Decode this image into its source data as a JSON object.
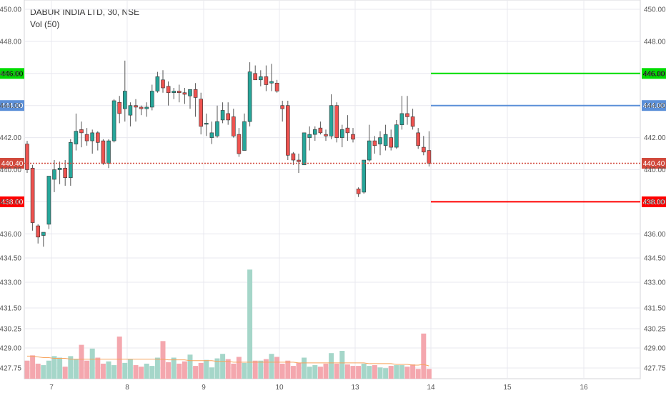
{
  "header": {
    "symbol": "DABUR INDIA LTD, 30, NSE",
    "indicator": "Vol (50)"
  },
  "colors": {
    "up": "#26a69a",
    "down": "#ef5350",
    "volume_up": "#a5d6c9",
    "volume_down": "#f4a7ae",
    "volume_ma": "#f7a35c",
    "grid": "#e8e8ef",
    "level_green": "#00dd00",
    "level_blue": "#5b8fd8",
    "level_red": "#ff0000",
    "last_price": "#d1483b"
  },
  "chart_data": {
    "type": "candlestick",
    "x_ticks": [
      "7",
      "8",
      "9",
      "10",
      "13",
      "14",
      "15",
      "16"
    ],
    "y_ticks_price": [
      "450.00",
      "448.00",
      "446.00",
      "444.00",
      "442.00",
      "440.00",
      "438.00",
      "436.00",
      "434.50"
    ],
    "y_ticks_volume": [
      "433.00",
      "431.50",
      "430.25",
      "429.00",
      "427.75"
    ],
    "price_range": [
      434.0,
      450.2
    ],
    "grid": true,
    "last_price": {
      "label": "440.40",
      "value": 440.4
    },
    "levels": [
      {
        "label": "446.00",
        "value": 446.0,
        "color": "level_green"
      },
      {
        "label": "444.00",
        "value": 444.0,
        "color": "level_blue"
      },
      {
        "label": "438.00",
        "value": 438.0,
        "color": "level_red"
      }
    ],
    "candles": [
      [
        441.6,
        441.8,
        439.8,
        440.0,
        2.4
      ],
      [
        440.1,
        440.3,
        436.2,
        436.7,
        3.1
      ],
      [
        436.5,
        436.6,
        435.4,
        435.8,
        2.0
      ],
      [
        435.9,
        436.1,
        435.2,
        436.1,
        1.8
      ],
      [
        436.6,
        439.6,
        436.3,
        439.6,
        2.4
      ],
      [
        439.4,
        440.6,
        438.6,
        440.0,
        3.0
      ],
      [
        440.0,
        440.5,
        439.1,
        440.1,
        2.8
      ],
      [
        440.1,
        440.6,
        439.0,
        439.5,
        1.6
      ],
      [
        439.5,
        441.9,
        439.0,
        441.7,
        3.0
      ],
      [
        441.6,
        443.5,
        441.2,
        442.4,
        2.6
      ],
      [
        442.5,
        443.0,
        441.4,
        442.3,
        4.5
      ],
      [
        442.2,
        442.6,
        441.5,
        441.8,
        2.4
      ],
      [
        441.8,
        442.5,
        441.0,
        442.3,
        4.0
      ],
      [
        442.3,
        442.4,
        441.2,
        441.7,
        2.8
      ],
      [
        441.8,
        441.9,
        440.3,
        440.4,
        2.0
      ],
      [
        440.4,
        441.9,
        440.1,
        441.8,
        2.3
      ],
      [
        441.8,
        444.4,
        441.7,
        444.3,
        1.8
      ],
      [
        444.2,
        444.6,
        442.9,
        443.5,
        5.6
      ],
      [
        443.8,
        446.8,
        443.0,
        444.9,
        2.1
      ],
      [
        443.4,
        444.2,
        442.7,
        444.0,
        2.6
      ],
      [
        444.0,
        444.4,
        443.0,
        443.9,
        1.8
      ],
      [
        443.9,
        444.0,
        443.4,
        443.8,
        1.6
      ],
      [
        443.8,
        444.2,
        443.3,
        443.9,
        2.0
      ],
      [
        443.9,
        445.3,
        443.7,
        444.9,
        1.7
      ],
      [
        444.9,
        446.1,
        444.8,
        445.8,
        2.8
      ],
      [
        445.6,
        446.2,
        444.8,
        445.1,
        5.0
      ],
      [
        445.2,
        445.5,
        444.0,
        444.8,
        2.2
      ],
      [
        444.8,
        445.1,
        444.4,
        444.9,
        2.8
      ],
      [
        444.9,
        445.3,
        444.2,
        444.8,
        2.0
      ],
      [
        444.8,
        445.1,
        444.1,
        444.7,
        2.3
      ],
      [
        444.6,
        445.0,
        443.8,
        445.0,
        3.2
      ],
      [
        445.0,
        445.4,
        443.3,
        444.5,
        1.7
      ],
      [
        444.4,
        444.8,
        442.2,
        442.7,
        2.1
      ],
      [
        442.9,
        443.5,
        442.1,
        442.9,
        2.5
      ],
      [
        442.0,
        443.0,
        441.6,
        442.3,
        1.5
      ],
      [
        442.1,
        444.0,
        442.0,
        443.0,
        2.7
      ],
      [
        443.1,
        444.2,
        442.9,
        443.7,
        3.3
      ],
      [
        443.5,
        444.2,
        442.8,
        443.1,
        2.6
      ],
      [
        443.3,
        443.8,
        442.0,
        442.1,
        2.0
      ],
      [
        442.2,
        442.6,
        440.8,
        441.0,
        2.9
      ],
      [
        441.2,
        443.5,
        441.2,
        443.0,
        2.1
      ],
      [
        443.0,
        446.7,
        442.7,
        446.1,
        14.5
      ],
      [
        446.0,
        446.5,
        445.6,
        445.6,
        2.4
      ],
      [
        445.6,
        446.2,
        445.2,
        445.8,
        2.4
      ],
      [
        445.8,
        446.5,
        444.9,
        445.3,
        2.6
      ],
      [
        445.4,
        446.6,
        444.9,
        445.5,
        3.3
      ],
      [
        445.4,
        445.6,
        444.8,
        444.9,
        2.9
      ],
      [
        444.0,
        444.3,
        443.0,
        443.8,
        2.0
      ],
      [
        444.0,
        444.3,
        440.6,
        440.9,
        2.4
      ],
      [
        441.0,
        441.1,
        440.3,
        440.6,
        1.7
      ],
      [
        440.6,
        441.0,
        439.8,
        440.5,
        2.1
      ],
      [
        440.3,
        442.2,
        440.3,
        442.3,
        2.8
      ],
      [
        442.0,
        442.7,
        441.2,
        442.2,
        1.6
      ],
      [
        442.2,
        442.7,
        441.8,
        442.5,
        1.8
      ],
      [
        442.6,
        443.0,
        442.2,
        442.3,
        1.6
      ],
      [
        442.2,
        442.5,
        441.8,
        442.1,
        2.0
      ],
      [
        442.1,
        444.7,
        441.9,
        444.0,
        3.4
      ],
      [
        444.0,
        444.2,
        441.7,
        442.0,
        2.0
      ],
      [
        442.0,
        442.8,
        441.4,
        442.5,
        3.7
      ],
      [
        442.6,
        443.4,
        441.8,
        442.3,
        1.9
      ],
      [
        442.2,
        442.6,
        441.7,
        441.9,
        1.7
      ],
      [
        438.8,
        438.9,
        438.3,
        438.5,
        1.7
      ],
      [
        438.6,
        440.6,
        438.5,
        440.6,
        2.0
      ],
      [
        440.6,
        442.8,
        440.5,
        441.8,
        1.7
      ],
      [
        441.8,
        442.1,
        441.0,
        441.5,
        1.8
      ],
      [
        441.6,
        442.4,
        440.9,
        442.0,
        1.5
      ],
      [
        441.5,
        442.8,
        441.2,
        442.2,
        1.4
      ],
      [
        442.0,
        442.5,
        441.2,
        441.4,
        1.7
      ],
      [
        441.4,
        443.1,
        441.3,
        442.8,
        1.8
      ],
      [
        442.8,
        444.6,
        442.5,
        443.5,
        1.8
      ],
      [
        443.5,
        444.6,
        442.8,
        443.3,
        1.6
      ],
      [
        443.3,
        443.8,
        442.5,
        442.7,
        1.9
      ],
      [
        442.3,
        442.6,
        441.3,
        441.5,
        1.3
      ],
      [
        441.4,
        442.1,
        440.9,
        441.1,
        6.0
      ],
      [
        441.2,
        442.4,
        440.2,
        440.4,
        1.3
      ]
    ],
    "volume_ma": [
      3.0,
      3.0,
      2.9,
      2.8,
      2.8,
      2.7,
      2.7,
      2.7,
      2.6,
      2.6,
      2.6,
      2.6,
      2.6,
      2.6,
      2.6,
      2.6,
      2.6,
      2.6,
      2.6,
      2.6,
      2.6,
      2.6,
      2.6,
      2.6,
      2.6,
      2.6,
      2.5,
      2.5,
      2.5,
      2.5,
      2.4,
      2.4,
      2.4,
      2.4,
      2.4,
      2.3,
      2.3,
      2.3,
      2.2,
      2.2,
      2.2,
      2.2,
      2.2,
      2.2,
      2.2,
      2.2,
      2.2,
      2.2,
      2.2,
      2.2,
      2.1,
      2.1,
      2.1,
      2.1,
      2.1,
      2.1,
      2.1,
      2.1,
      2.1,
      2.1,
      2.1,
      2.1,
      2.1,
      2.0,
      2.0,
      2.0,
      2.0,
      2.0,
      1.9,
      1.9,
      1.9,
      1.8,
      1.8,
      1.9,
      1.7
    ]
  }
}
